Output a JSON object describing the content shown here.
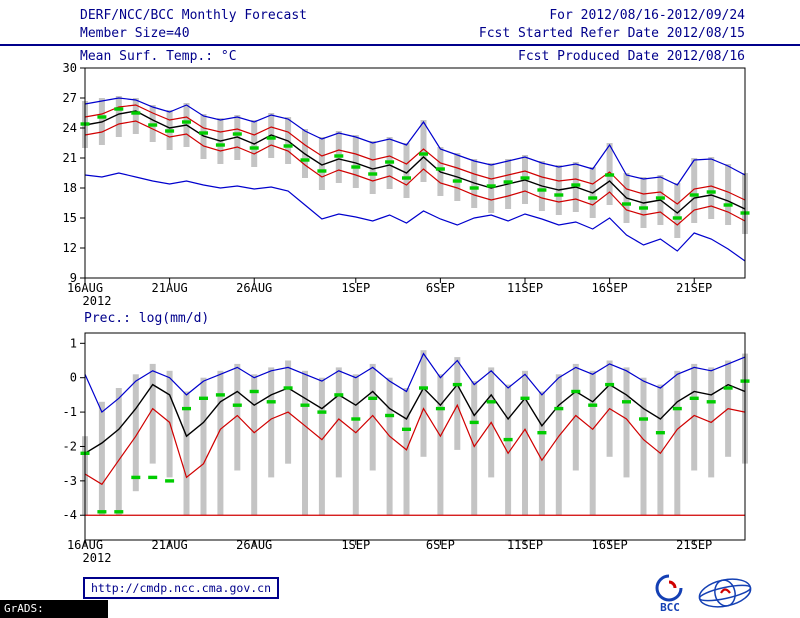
{
  "header": {
    "title": "DERF/NCC/BCC Monthly Forecast",
    "member_size": "Member Size=40",
    "panel1_label": "Mean Surf. Temp.: °C",
    "for_range": "For 2012/08/16-2012/09/24",
    "fcst_ref": "Fcst Started Refer Date 2012/08/15",
    "fcst_prod": "Fcst Produced Date 2012/08/16"
  },
  "footer": {
    "url": "http://cmdp.ncc.cma.gov.cn",
    "grads_credit": "GrADS: COLA/IGES",
    "bcc_logo_label": "BCC"
  },
  "colors": {
    "header_text": "#00008b",
    "axis": "#000000",
    "ensemble_bar": "#c4c4c4",
    "max_min_line": "#0000cd",
    "quartile_line": "#d00000",
    "mean_line": "#000000",
    "observation": "#00cc00"
  },
  "chart_data": [
    {
      "type": "line",
      "title": "Mean Surf. Temp.: °C",
      "n_days": 40,
      "x_tick_labels": [
        "16AUG",
        "21AUG",
        "26AUG",
        "1SEP",
        "6SEP",
        "11SEP",
        "16SEP",
        "21SEP"
      ],
      "x_tick_days": [
        0,
        5,
        10,
        16,
        21,
        26,
        31,
        36
      ],
      "x_year_label": "2012",
      "ylim": [
        9,
        30
      ],
      "yticks": [
        9,
        12,
        15,
        18,
        21,
        24,
        27,
        30
      ],
      "grid": false,
      "legend": "none",
      "bars": {
        "name": "ensemble spread",
        "color": "#c4c4c4",
        "top": [
          26.7,
          27.0,
          27.2,
          27.0,
          26.3,
          25.8,
          26.5,
          25.4,
          25.0,
          25.3,
          24.8,
          25.5,
          25.1,
          23.9,
          23.1,
          23.7,
          23.3,
          22.7,
          23.1,
          22.5,
          24.8,
          22.1,
          21.5,
          20.9,
          20.5,
          20.9,
          21.3,
          20.7,
          20.3,
          20.6,
          20.1,
          22.5,
          19.5,
          19.1,
          19.3,
          18.5,
          21.0,
          21.1,
          20.4,
          19.5
        ],
        "bottom": [
          22.0,
          22.3,
          23.1,
          23.4,
          22.6,
          21.8,
          22.1,
          20.9,
          20.4,
          20.8,
          20.1,
          21.0,
          20.4,
          19.0,
          17.8,
          18.5,
          18.0,
          17.4,
          17.9,
          17.0,
          18.6,
          17.2,
          16.7,
          16.0,
          15.5,
          15.9,
          16.4,
          15.7,
          15.3,
          15.6,
          15.0,
          16.3,
          14.5,
          14.0,
          14.3,
          13.0,
          14.5,
          14.9,
          14.3,
          13.4
        ]
      },
      "series": [
        {
          "name": "ensemble max",
          "color": "#0000cd",
          "values": [
            26.4,
            26.7,
            27.0,
            26.8,
            26.1,
            25.6,
            26.3,
            25.2,
            24.8,
            25.1,
            24.6,
            25.3,
            24.9,
            23.7,
            22.9,
            23.5,
            23.1,
            22.5,
            22.9,
            22.3,
            24.6,
            21.9,
            21.3,
            20.7,
            20.3,
            20.7,
            21.1,
            20.5,
            20.1,
            20.4,
            19.9,
            22.3,
            19.3,
            18.9,
            19.1,
            18.3,
            20.8,
            20.9,
            20.2,
            19.3
          ]
        },
        {
          "name": "ensemble min",
          "color": "#0000cd",
          "values": [
            19.3,
            19.1,
            19.5,
            19.1,
            18.7,
            18.4,
            18.7,
            18.3,
            18.0,
            18.2,
            17.9,
            18.1,
            17.7,
            16.3,
            14.9,
            15.4,
            15.1,
            14.7,
            15.3,
            14.5,
            15.7,
            14.9,
            14.3,
            15.0,
            15.3,
            14.7,
            15.4,
            14.9,
            14.3,
            14.6,
            13.9,
            15.0,
            13.3,
            12.3,
            12.9,
            11.7,
            13.5,
            12.9,
            11.9,
            10.7
          ]
        },
        {
          "name": "upper quartile",
          "color": "#d00000",
          "values": [
            25.1,
            25.4,
            26.1,
            26.3,
            25.5,
            24.8,
            25.1,
            24.0,
            23.6,
            23.9,
            23.3,
            24.1,
            23.6,
            22.3,
            21.2,
            21.8,
            21.4,
            20.8,
            21.2,
            20.4,
            21.9,
            20.5,
            20.0,
            19.4,
            18.9,
            19.3,
            19.7,
            19.1,
            18.7,
            18.9,
            18.4,
            19.6,
            17.9,
            17.4,
            17.6,
            16.4,
            17.9,
            18.2,
            17.6,
            16.8
          ]
        },
        {
          "name": "lower quartile",
          "color": "#d00000",
          "values": [
            23.3,
            23.6,
            24.4,
            24.7,
            23.9,
            23.1,
            23.4,
            22.2,
            21.7,
            22.1,
            21.4,
            22.3,
            21.7,
            20.3,
            19.1,
            19.8,
            19.3,
            18.7,
            19.2,
            18.3,
            19.9,
            18.5,
            18.0,
            17.3,
            16.8,
            17.2,
            17.7,
            17.0,
            16.6,
            16.9,
            16.3,
            17.6,
            15.8,
            15.3,
            15.6,
            14.3,
            15.8,
            16.2,
            15.6,
            14.7
          ]
        },
        {
          "name": "ensemble mean",
          "color": "#000000",
          "width": 1.4,
          "values": [
            24.3,
            24.6,
            25.4,
            25.7,
            24.8,
            24.0,
            24.3,
            23.2,
            22.7,
            23.1,
            22.4,
            23.3,
            22.7,
            21.4,
            20.3,
            20.9,
            20.5,
            19.9,
            20.3,
            19.5,
            21.1,
            19.6,
            19.1,
            18.5,
            18.0,
            18.4,
            18.8,
            18.2,
            17.8,
            18.1,
            17.5,
            18.7,
            17.0,
            16.5,
            16.8,
            15.5,
            17.0,
            17.3,
            16.7,
            15.9
          ]
        },
        {
          "name": "observation",
          "color": "#00cc00",
          "style": "dashes",
          "values": [
            24.4,
            25.1,
            25.9,
            25.5,
            24.3,
            23.7,
            24.6,
            23.5,
            22.3,
            23.4,
            22.0,
            23.0,
            22.2,
            20.8,
            19.7,
            21.2,
            20.1,
            19.4,
            20.6,
            19.0,
            21.4,
            19.9,
            18.7,
            18.0,
            18.2,
            18.6,
            19.0,
            17.8,
            17.3,
            18.3,
            17.0,
            19.3,
            16.4,
            16.0,
            17.0,
            15.0,
            17.3,
            17.6,
            16.3,
            15.5
          ]
        }
      ]
    },
    {
      "type": "line",
      "title": "Prec.: log(mm/d)",
      "n_days": 40,
      "x_tick_labels": [
        "16AUG",
        "21AUG",
        "26AUG",
        "1SEP",
        "6SEP",
        "11SEP",
        "16SEP",
        "21SEP"
      ],
      "x_tick_days": [
        0,
        5,
        10,
        16,
        21,
        26,
        31,
        36
      ],
      "x_year_label": "2012",
      "ylim": [
        -4,
        1
      ],
      "plot_range": [
        -4.72,
        1.3
      ],
      "yticks": [
        -4,
        -3,
        -2,
        -1,
        0,
        1
      ],
      "grid": false,
      "legend": "none",
      "floor_line": {
        "value": -4,
        "color": "#d00000"
      },
      "bars": {
        "name": "ensemble spread",
        "color": "#c4c4c4",
        "top": [
          -1.7,
          -0.7,
          -0.3,
          0.1,
          0.4,
          0.2,
          -0.4,
          0.0,
          0.2,
          0.4,
          0.1,
          0.3,
          0.5,
          0.2,
          0.0,
          0.3,
          0.1,
          0.4,
          0.0,
          -0.3,
          0.8,
          0.1,
          0.6,
          -0.1,
          0.3,
          -0.2,
          0.2,
          -0.4,
          0.1,
          0.4,
          0.2,
          0.5,
          0.3,
          0.0,
          -0.2,
          0.2,
          0.4,
          0.3,
          0.5,
          0.7
        ],
        "bottom": [
          -4,
          -4,
          -4,
          -3.3,
          -2.5,
          -2.9,
          -4,
          -4,
          -4,
          -2.7,
          -4,
          -2.9,
          -2.5,
          -4,
          -4,
          -2.9,
          -4,
          -2.7,
          -4,
          -4,
          -2.3,
          -4,
          -2.1,
          -4,
          -2.9,
          -4,
          -4,
          -4,
          -4,
          -2.7,
          -4,
          -2.3,
          -2.9,
          -4,
          -4,
          -4,
          -2.7,
          -2.9,
          -2.3,
          -2.5
        ]
      },
      "series": [
        {
          "name": "ensemble max",
          "color": "#0000cd",
          "values": [
            0.1,
            -1.0,
            -0.6,
            -0.1,
            0.2,
            0.0,
            -0.5,
            -0.1,
            0.1,
            0.3,
            0.0,
            0.2,
            0.3,
            0.1,
            -0.1,
            0.2,
            0.0,
            0.3,
            -0.1,
            -0.4,
            0.7,
            0.0,
            0.5,
            -0.2,
            0.2,
            -0.3,
            0.1,
            -0.5,
            0.0,
            0.3,
            0.1,
            0.4,
            0.2,
            -0.1,
            -0.3,
            0.1,
            0.3,
            0.2,
            0.4,
            0.6
          ]
        },
        {
          "name": "lower quartile",
          "color": "#d00000",
          "values": [
            -2.8,
            -3.1,
            -2.4,
            -1.7,
            -0.9,
            -1.3,
            -2.9,
            -2.5,
            -1.5,
            -1.1,
            -1.6,
            -1.2,
            -1.0,
            -1.4,
            -1.8,
            -1.2,
            -1.6,
            -1.1,
            -1.7,
            -2.1,
            -0.9,
            -1.7,
            -0.8,
            -2.0,
            -1.3,
            -2.2,
            -1.5,
            -2.4,
            -1.7,
            -1.1,
            -1.5,
            -0.9,
            -1.2,
            -1.8,
            -2.2,
            -1.5,
            -1.1,
            -1.3,
            -0.9,
            -1.0
          ]
        },
        {
          "name": "ensemble mean",
          "color": "#000000",
          "width": 1.4,
          "values": [
            -2.2,
            -1.9,
            -1.5,
            -0.9,
            -0.2,
            -0.5,
            -1.7,
            -1.3,
            -0.7,
            -0.4,
            -0.8,
            -0.5,
            -0.3,
            -0.6,
            -0.9,
            -0.5,
            -0.8,
            -0.4,
            -0.9,
            -1.2,
            -0.3,
            -0.8,
            -0.2,
            -1.1,
            -0.5,
            -1.2,
            -0.6,
            -1.4,
            -0.8,
            -0.4,
            -0.7,
            -0.2,
            -0.5,
            -0.9,
            -1.2,
            -0.7,
            -0.4,
            -0.5,
            -0.2,
            -0.4
          ]
        },
        {
          "name": "observation",
          "color": "#00cc00",
          "style": "dashes",
          "values": [
            -2.2,
            -3.9,
            -3.9,
            -2.9,
            -2.9,
            -3.0,
            -0.9,
            -0.6,
            -0.5,
            -0.8,
            -0.4,
            -0.7,
            -0.3,
            -0.8,
            -1.0,
            -0.5,
            -1.2,
            -0.6,
            -1.1,
            -1.5,
            -0.3,
            -0.9,
            -0.2,
            -1.3,
            -0.7,
            -1.8,
            -0.6,
            -1.6,
            -0.9,
            -0.4,
            -0.8,
            -0.2,
            -0.7,
            -1.2,
            -1.6,
            -0.9,
            -0.6,
            -0.7,
            -0.3,
            -0.1
          ]
        }
      ]
    }
  ]
}
